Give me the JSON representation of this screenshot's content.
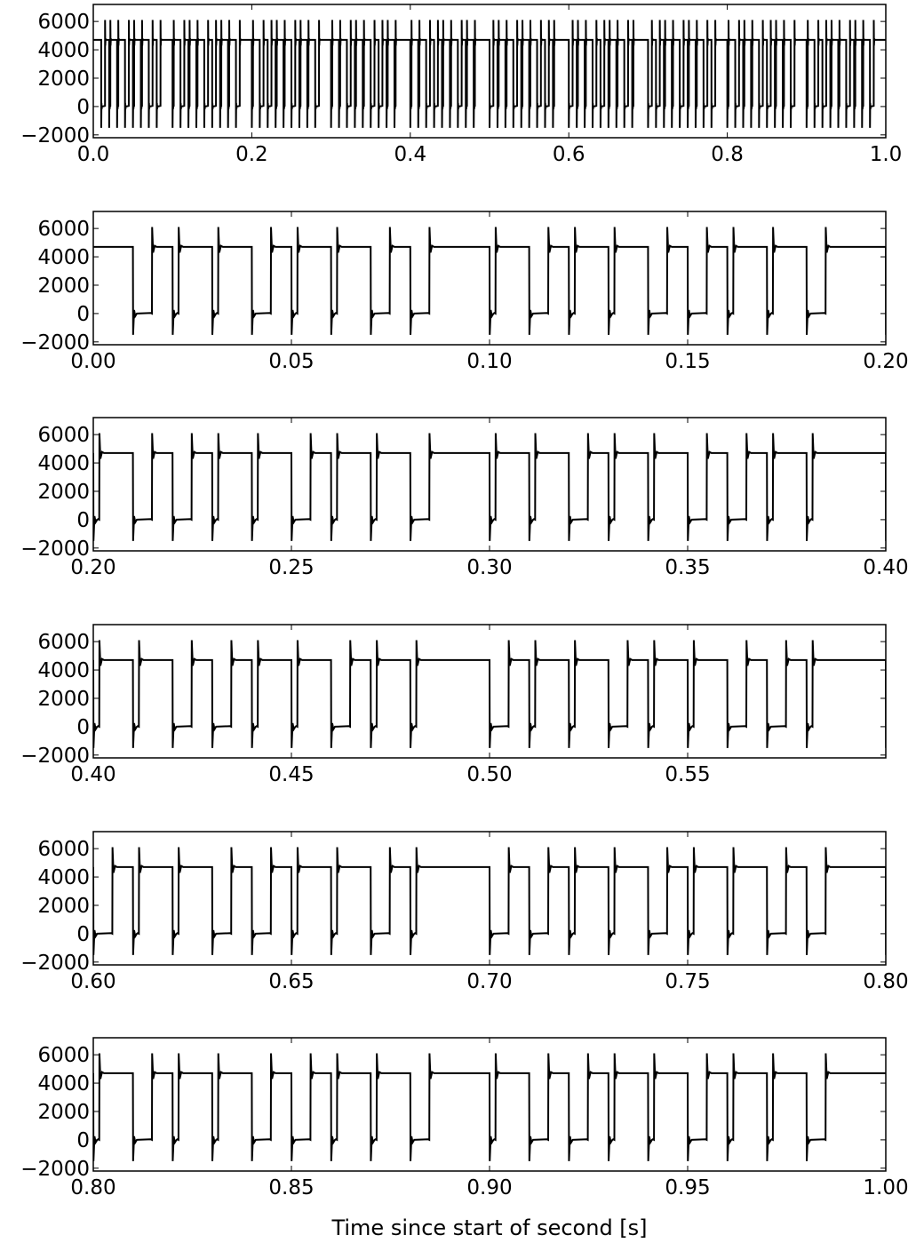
{
  "figure": {
    "xlabel": "Time since start of second [s]"
  },
  "style": {
    "line_color": "#000000",
    "background": "#ffffff",
    "axes_edge": "#000000",
    "grid": false,
    "legend": "none"
  },
  "signal": {
    "high_level": 4700,
    "low_level": 0,
    "rise_overshoot": 6100,
    "fall_undershoot": -1500,
    "pulse_period_s": 0.01,
    "long_high_seconds_marks": [
      0.0,
      0.09,
      0.19,
      0.29,
      0.39,
      0.49,
      0.59,
      0.69,
      0.79,
      0.89,
      0.99
    ]
  },
  "chart_data": [
    {
      "type": "line",
      "xlim": [
        0.0,
        1.0
      ],
      "ylim": [
        -2200,
        7200
      ],
      "xticks": [
        0.0,
        0.2,
        0.4,
        0.6,
        0.8,
        1.0
      ],
      "xtick_labels": [
        "0.0",
        "0.2",
        "0.4",
        "0.6",
        "0.8",
        "1.0"
      ],
      "yticks": [
        -2000,
        0,
        2000,
        4000,
        6000
      ],
      "ytick_labels": [
        "−2000",
        "0",
        "2000",
        "4000",
        "6000"
      ],
      "series": [
        {
          "values_source": "signal"
        }
      ]
    },
    {
      "type": "line",
      "xlim": [
        0.0,
        0.2
      ],
      "ylim": [
        -2200,
        7200
      ],
      "xticks": [
        0.0,
        0.05,
        0.1,
        0.15,
        0.2
      ],
      "xtick_labels": [
        "0.00",
        "0.05",
        "0.10",
        "0.15",
        "0.20"
      ],
      "yticks": [
        -2000,
        0,
        2000,
        4000,
        6000
      ],
      "ytick_labels": [
        "−2000",
        "0",
        "2000",
        "4000",
        "6000"
      ],
      "series": [
        {
          "values_source": "signal"
        }
      ]
    },
    {
      "type": "line",
      "xlim": [
        0.2,
        0.4
      ],
      "ylim": [
        -2200,
        7200
      ],
      "xticks": [
        0.2,
        0.25,
        0.3,
        0.35,
        0.4
      ],
      "xtick_labels": [
        "0.20",
        "0.25",
        "0.30",
        "0.35",
        "0.40"
      ],
      "yticks": [
        -2000,
        0,
        2000,
        4000,
        6000
      ],
      "ytick_labels": [
        "−2000",
        "0",
        "2000",
        "4000",
        "6000"
      ],
      "series": [
        {
          "values_source": "signal"
        }
      ]
    },
    {
      "type": "line",
      "xlim": [
        0.4,
        0.6
      ],
      "ylim": [
        -2200,
        7200
      ],
      "xticks": [
        0.4,
        0.45,
        0.5,
        0.55
      ],
      "xtick_labels": [
        "0.40",
        "0.45",
        "0.50",
        "0.55"
      ],
      "yticks": [
        -2000,
        0,
        2000,
        4000,
        6000
      ],
      "ytick_labels": [
        "−2000",
        "0",
        "2000",
        "4000",
        "6000"
      ],
      "series": [
        {
          "values_source": "signal"
        }
      ]
    },
    {
      "type": "line",
      "xlim": [
        0.6,
        0.8
      ],
      "ylim": [
        -2200,
        7200
      ],
      "xticks": [
        0.6,
        0.65,
        0.7,
        0.75,
        0.8
      ],
      "xtick_labels": [
        "0.60",
        "0.65",
        "0.70",
        "0.75",
        "0.80"
      ],
      "yticks": [
        -2000,
        0,
        2000,
        4000,
        6000
      ],
      "ytick_labels": [
        "−2000",
        "0",
        "2000",
        "4000",
        "6000"
      ],
      "series": [
        {
          "values_source": "signal"
        }
      ]
    },
    {
      "type": "line",
      "xlim": [
        0.8,
        1.0
      ],
      "ylim": [
        -2200,
        7200
      ],
      "xticks": [
        0.8,
        0.85,
        0.9,
        0.95,
        1.0
      ],
      "xtick_labels": [
        "0.80",
        "0.85",
        "0.90",
        "0.95",
        "1.00"
      ],
      "yticks": [
        -2000,
        0,
        2000,
        4000,
        6000
      ],
      "ytick_labels": [
        "−2000",
        "0",
        "2000",
        "4000",
        "6000"
      ],
      "series": [
        {
          "values_source": "signal"
        }
      ]
    }
  ]
}
